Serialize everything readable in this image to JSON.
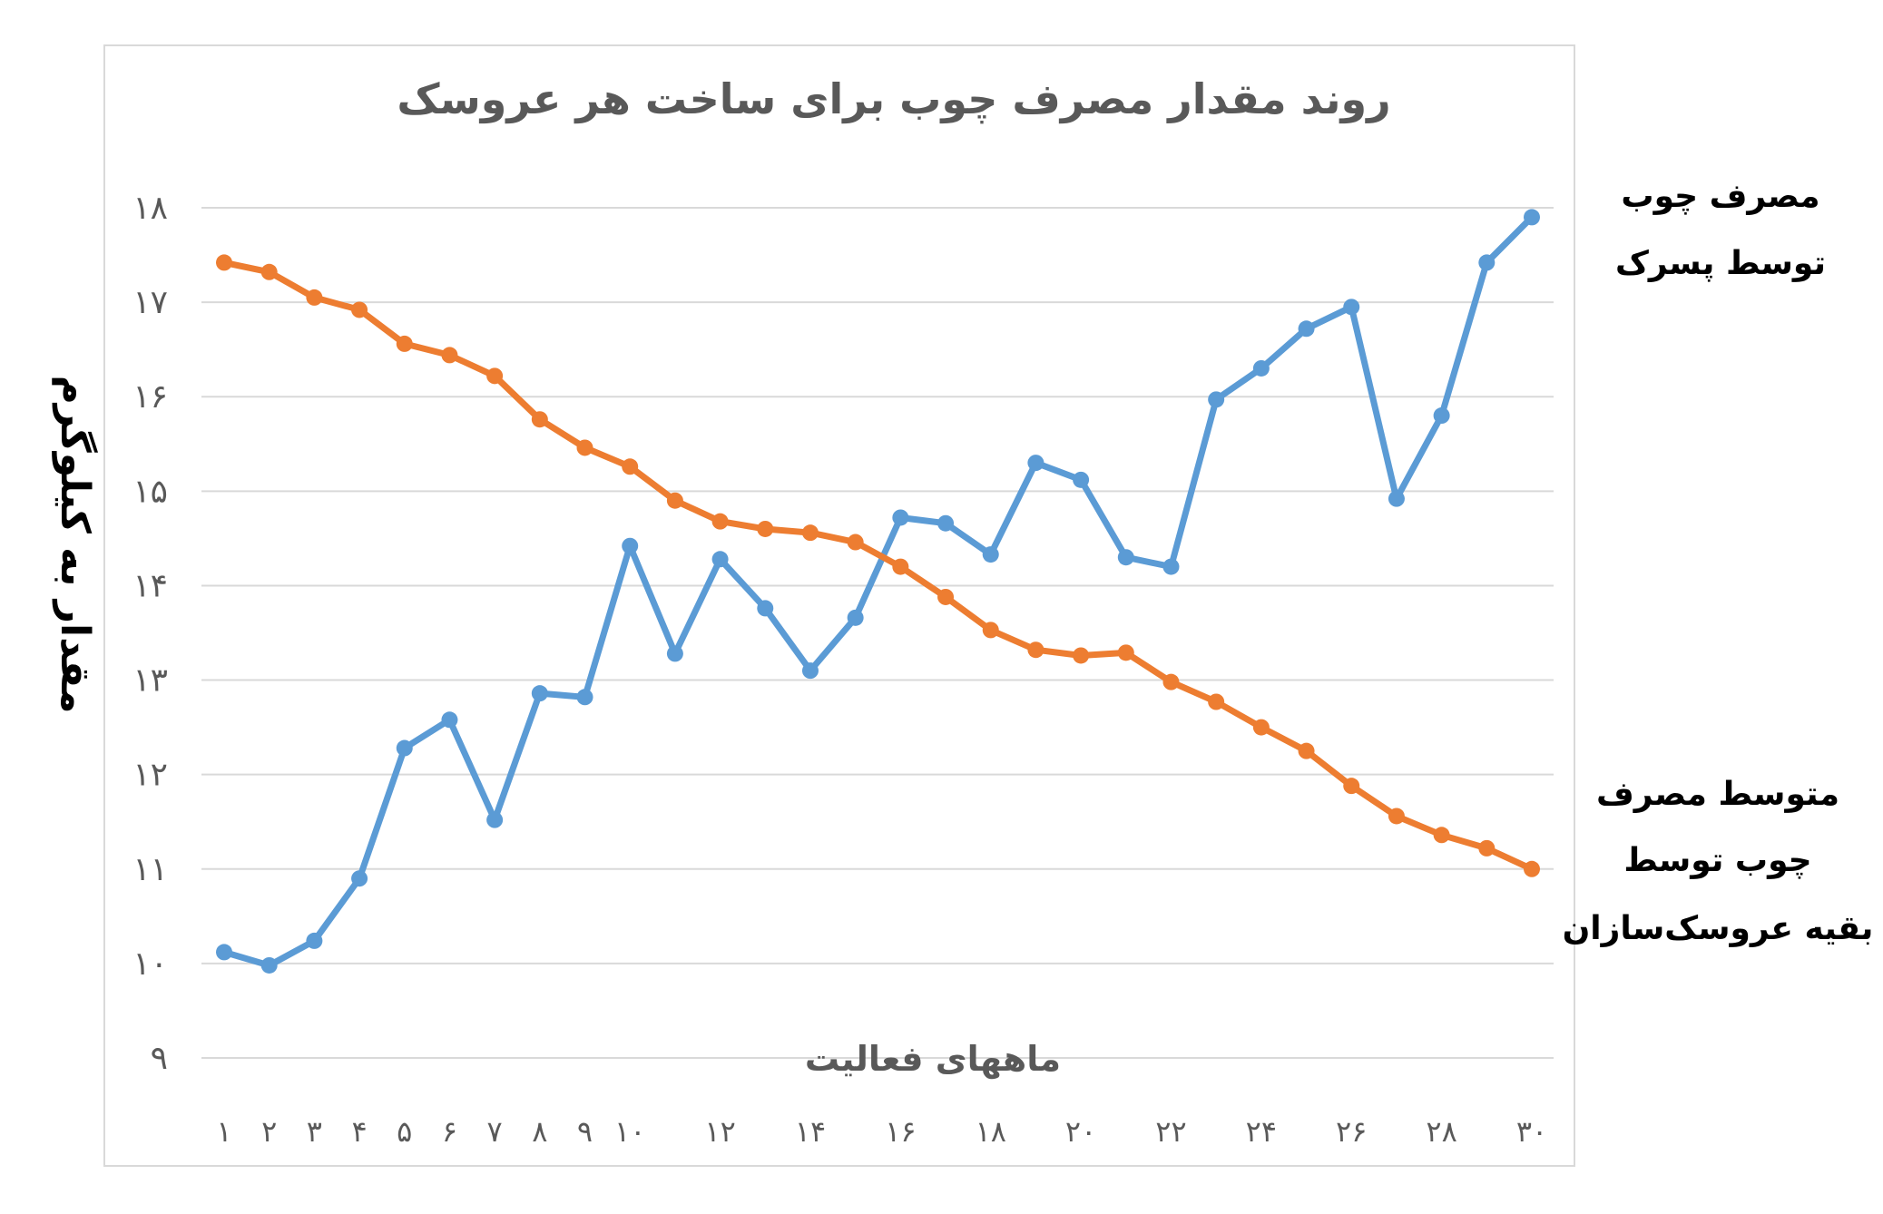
{
  "chart_data": {
    "type": "line",
    "title": "روند مقدار مصرف چوب برای ساخت هر عروسک",
    "ylabel": "مقدار به کیلوگرم",
    "xlabel": "ماههای فعالیت",
    "ylim": [
      9,
      18
    ],
    "y_ticks": [
      "۹",
      "۱۰",
      "۱۱",
      "۱۲",
      "۱۳",
      "۱۴",
      "۱۵",
      "۱۶",
      "۱۷",
      "۱۸"
    ],
    "x": [
      1,
      2,
      3,
      4,
      5,
      6,
      7,
      8,
      9,
      10,
      11,
      12,
      13,
      14,
      15,
      16,
      17,
      18,
      19,
      20,
      21,
      22,
      23,
      24,
      25,
      26,
      27,
      28,
      29,
      30
    ],
    "x_tick_labels": [
      {
        "x": 1,
        "label": "۱"
      },
      {
        "x": 2,
        "label": "۲"
      },
      {
        "x": 3,
        "label": "۳"
      },
      {
        "x": 4,
        "label": "۴"
      },
      {
        "x": 5,
        "label": "۵"
      },
      {
        "x": 6,
        "label": "۶"
      },
      {
        "x": 7,
        "label": "۷"
      },
      {
        "x": 8,
        "label": "۸"
      },
      {
        "x": 9,
        "label": "۹"
      },
      {
        "x": 10,
        "label": "۱۰"
      },
      {
        "x": 12,
        "label": "۱۲"
      },
      {
        "x": 14,
        "label": "۱۴"
      },
      {
        "x": 16,
        "label": "۱۶"
      },
      {
        "x": 18,
        "label": "۱۸"
      },
      {
        "x": 20,
        "label": "۲۰"
      },
      {
        "x": 22,
        "label": "۲۲"
      },
      {
        "x": 24,
        "label": "۲۴"
      },
      {
        "x": 26,
        "label": "۲۶"
      },
      {
        "x": 28,
        "label": "۲۸"
      },
      {
        "x": 30,
        "label": "۳۰"
      }
    ],
    "grid": true,
    "series": [
      {
        "name": "مصرف چوب توسط پسرک",
        "legend_lines": [
          "مصرف چوب",
          "توسط پسرک"
        ],
        "color": "#5B9BD5",
        "values": [
          10.12,
          9.98,
          10.24,
          10.9,
          12.28,
          12.58,
          11.52,
          12.86,
          12.82,
          14.42,
          13.28,
          14.28,
          13.76,
          13.1,
          13.66,
          14.72,
          14.66,
          14.33,
          15.3,
          15.12,
          14.3,
          14.2,
          15.97,
          16.3,
          16.72,
          16.95,
          14.92,
          15.8,
          17.42,
          17.9
        ]
      },
      {
        "name": "متوسط مصرف چوب توسط بقیه عروسک‌سازان",
        "legend_lines": [
          "متوسط مصرف",
          "چوب توسط",
          "بقیه عروسک‌سازان"
        ],
        "color": "#ED7D31",
        "values": [
          17.42,
          17.32,
          17.05,
          16.92,
          16.56,
          16.44,
          16.22,
          15.76,
          15.46,
          15.26,
          14.9,
          14.68,
          14.6,
          14.56,
          14.46,
          14.2,
          13.88,
          13.53,
          13.32,
          13.26,
          13.29,
          12.98,
          12.77,
          12.5,
          12.25,
          11.88,
          11.56,
          11.36,
          11.22,
          11.0
        ]
      }
    ]
  }
}
